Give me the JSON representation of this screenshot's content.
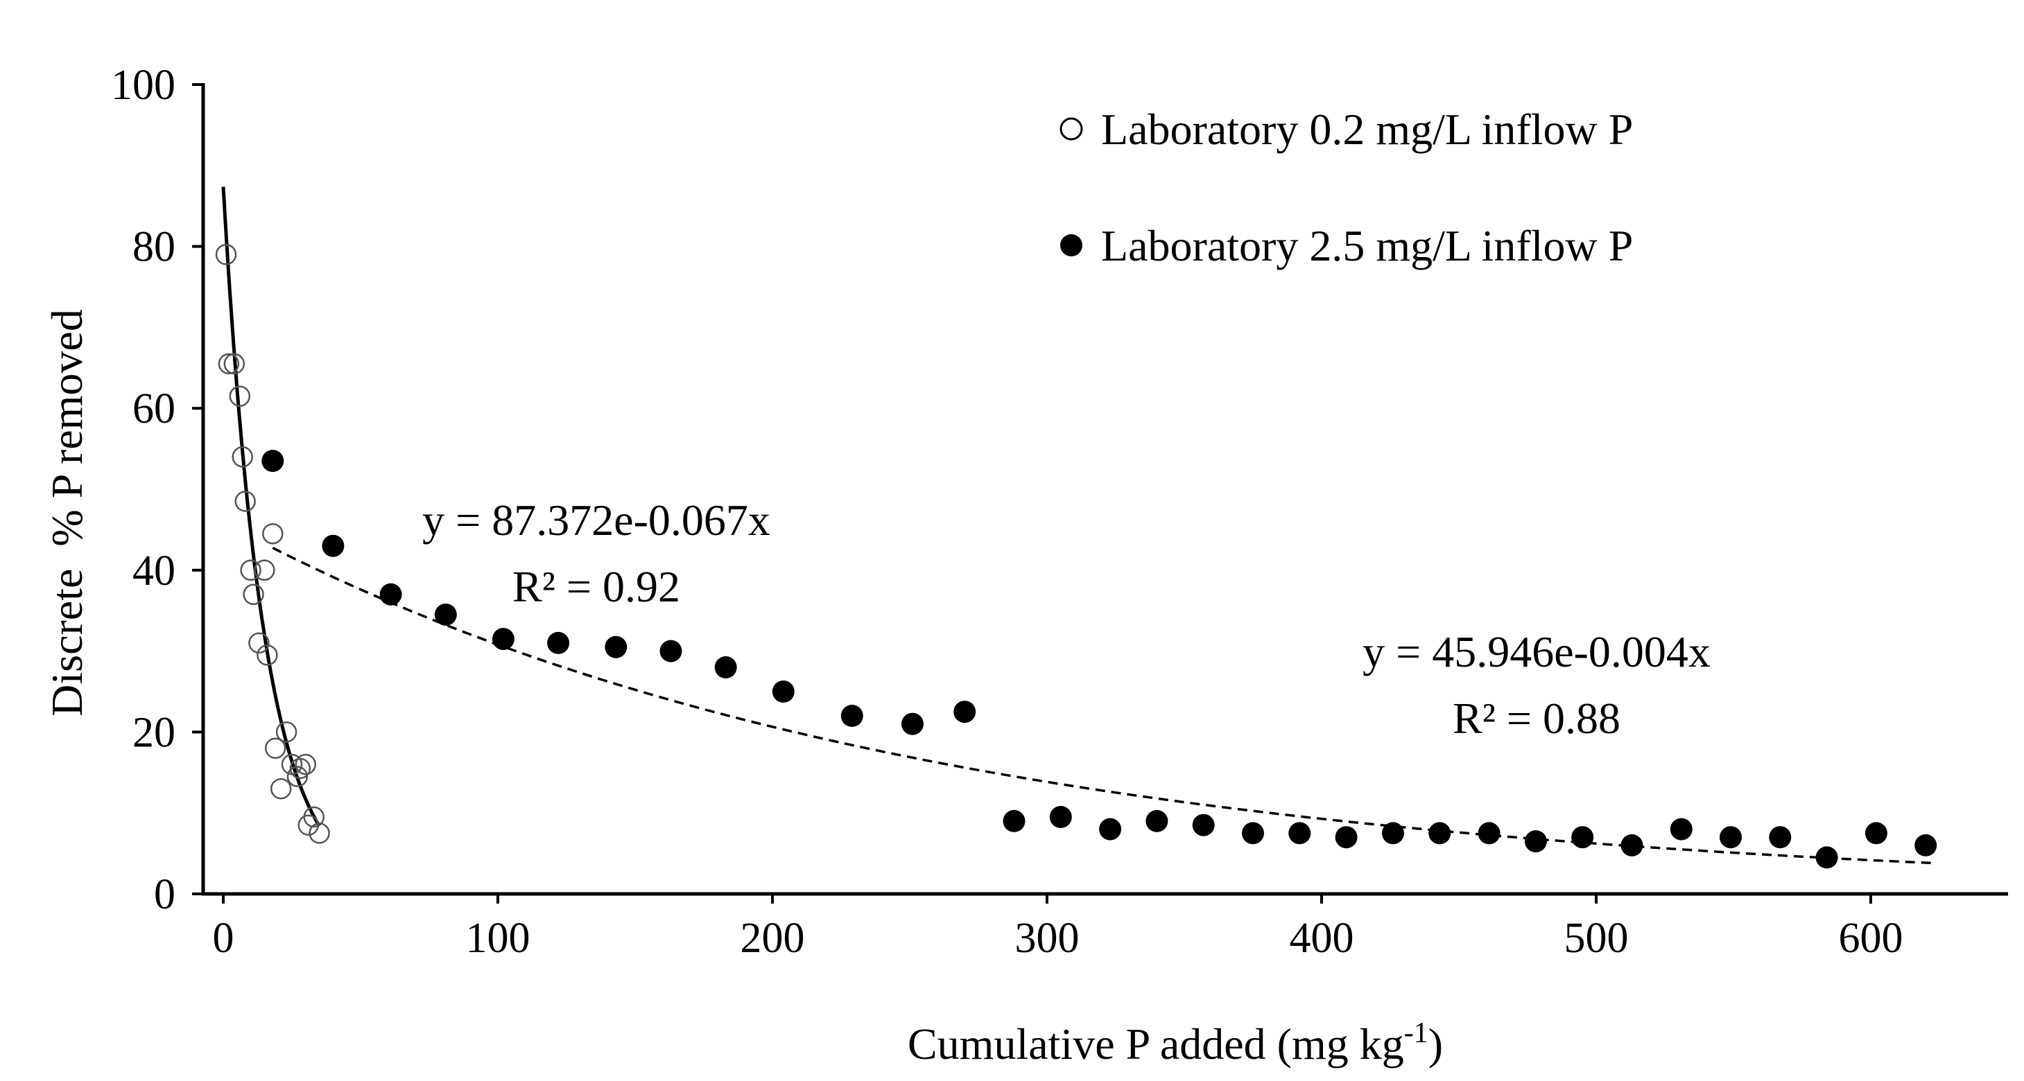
{
  "chart_data": {
    "type": "scatter",
    "title": "",
    "xlabel": "Cumulative P added (mg kg",
    "xlabel_sup": "-1",
    "xlabel_close": ")",
    "ylabel": "Discrete  % P removed",
    "xlim": [
      0,
      650
    ],
    "ylim": [
      0,
      100
    ],
    "xticks": [
      0,
      100,
      200,
      300,
      400,
      500,
      600
    ],
    "yticks": [
      0,
      20,
      40,
      60,
      80,
      100
    ],
    "grid": false,
    "legend_position": "top-right",
    "series": [
      {
        "name": "Laboratory 0.2 mg/L inflow P",
        "marker": "open-circle",
        "points": [
          [
            1,
            79
          ],
          [
            2,
            65.5
          ],
          [
            4,
            65.5
          ],
          [
            6,
            61.5
          ],
          [
            7,
            54
          ],
          [
            8,
            48.5
          ],
          [
            10,
            40
          ],
          [
            11,
            37
          ],
          [
            13,
            31
          ],
          [
            15,
            40
          ],
          [
            16,
            29.5
          ],
          [
            18,
            44.5
          ],
          [
            19,
            18
          ],
          [
            21,
            13
          ],
          [
            23,
            20
          ],
          [
            25,
            16
          ],
          [
            27,
            14.5
          ],
          [
            28,
            15.5
          ],
          [
            30,
            16
          ],
          [
            31,
            8.5
          ],
          [
            33,
            9.5
          ],
          [
            35,
            7.5
          ]
        ],
        "fit": {
          "equation": "y = 87.372e-0.067x",
          "r2": "R² = 0.92",
          "a": 87.372,
          "b": -0.067,
          "x_range": [
            0,
            35
          ],
          "style": "solid"
        }
      },
      {
        "name": "Laboratory 2.5 mg/L inflow P",
        "marker": "filled-circle",
        "points": [
          [
            18,
            53.5
          ],
          [
            40,
            43
          ],
          [
            61,
            37
          ],
          [
            81,
            34.5
          ],
          [
            102,
            31.5
          ],
          [
            122,
            31
          ],
          [
            143,
            30.5
          ],
          [
            163,
            30
          ],
          [
            183,
            28
          ],
          [
            204,
            25
          ],
          [
            229,
            22
          ],
          [
            251,
            21
          ],
          [
            270,
            22.5
          ],
          [
            288,
            9
          ],
          [
            305,
            9.5
          ],
          [
            323,
            8
          ],
          [
            340,
            9
          ],
          [
            357,
            8.5
          ],
          [
            375,
            7.5
          ],
          [
            392,
            7.5
          ],
          [
            409,
            7
          ],
          [
            426,
            7.5
          ],
          [
            443,
            7.5
          ],
          [
            461,
            7.5
          ],
          [
            478,
            6.5
          ],
          [
            495,
            7
          ],
          [
            513,
            6
          ],
          [
            531,
            8
          ],
          [
            549,
            7
          ],
          [
            567,
            7
          ],
          [
            584,
            4.5
          ],
          [
            602,
            7.5
          ],
          [
            620,
            6
          ]
        ],
        "fit": {
          "equation": "y = 45.946e-0.004x",
          "r2": "R² = 0.88",
          "a": 45.946,
          "b": -0.004,
          "x_range": [
            18,
            622
          ],
          "style": "dashed"
        }
      }
    ]
  }
}
